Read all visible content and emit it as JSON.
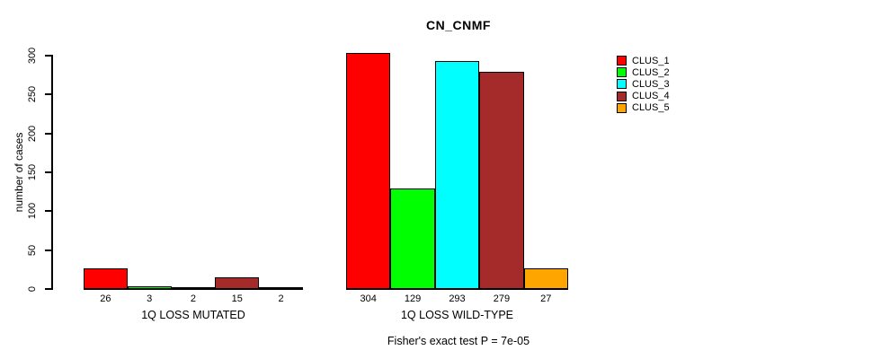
{
  "chart_data": {
    "type": "bar",
    "title": "CN_CNMF",
    "ylabel": "number of cases",
    "xlabel": "",
    "annotation": "Fisher's exact test P = 7e-05",
    "ylim": [
      0,
      300
    ],
    "yticks": [
      0,
      50,
      100,
      150,
      200,
      250,
      300
    ],
    "grid": false,
    "legend_position": "right-outside",
    "bar_value_labels_shown": true,
    "series": [
      {
        "name": "CLUS_1",
        "color": "#FF0000"
      },
      {
        "name": "CLUS_2",
        "color": "#00FF00"
      },
      {
        "name": "CLUS_3",
        "color": "#00FFFF"
      },
      {
        "name": "CLUS_4",
        "color": "#A52A2A"
      },
      {
        "name": "CLUS_5",
        "color": "#FFA500"
      }
    ],
    "groups": [
      {
        "label": "1Q LOSS MUTATED",
        "values": [
          26,
          3,
          2,
          15,
          2
        ]
      },
      {
        "label": "1Q LOSS WILD-TYPE",
        "values": [
          304,
          129,
          293,
          279,
          27
        ]
      }
    ]
  }
}
